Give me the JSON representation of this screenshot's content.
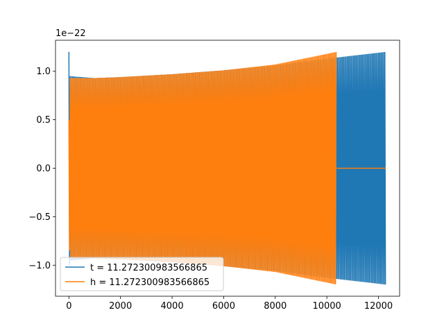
{
  "chart_data": {
    "type": "line",
    "y_offset_label": "1e−22",
    "xlim": [
      -520,
      12820
    ],
    "ylim": [
      -1.32,
      1.32
    ],
    "xticks": [
      {
        "value": 0,
        "label": "0"
      },
      {
        "value": 2000,
        "label": "2000"
      },
      {
        "value": 4000,
        "label": "4000"
      },
      {
        "value": 6000,
        "label": "6000"
      },
      {
        "value": 8000,
        "label": "8000"
      },
      {
        "value": 10000,
        "label": "10000"
      },
      {
        "value": 12000,
        "label": "12000"
      }
    ],
    "yticks": [
      {
        "value": -1.0,
        "label": "−1.0"
      },
      {
        "value": -0.5,
        "label": "−0.5"
      },
      {
        "value": 0.0,
        "label": "0.0"
      },
      {
        "value": 0.5,
        "label": "0.5"
      },
      {
        "value": 1.0,
        "label": "1.0"
      }
    ],
    "grid": false,
    "legend_position": "lower-left",
    "series": [
      {
        "name": "t = 11.272300983566865",
        "color": "#1f77b4",
        "x_range": [
          0,
          12290
        ],
        "envelope": [
          [
            0,
            1.2
          ],
          [
            30,
            0.95
          ],
          [
            1000,
            0.93
          ],
          [
            2000,
            0.94
          ],
          [
            4000,
            0.97
          ],
          [
            6000,
            1.01
          ],
          [
            8000,
            1.06
          ],
          [
            10000,
            1.13
          ],
          [
            12290,
            1.2
          ]
        ],
        "flat_after": null
      },
      {
        "name": "h = 11.272300983566865",
        "color": "#ff7f0e",
        "x_range": [
          0,
          10380
        ],
        "envelope": [
          [
            0,
            0.5
          ],
          [
            30,
            0.93
          ],
          [
            1000,
            0.93
          ],
          [
            2000,
            0.94
          ],
          [
            4000,
            0.97
          ],
          [
            6000,
            1.01
          ],
          [
            8000,
            1.07
          ],
          [
            10380,
            1.2
          ]
        ],
        "flat_after": [
          10380,
          12290
        ]
      }
    ]
  }
}
